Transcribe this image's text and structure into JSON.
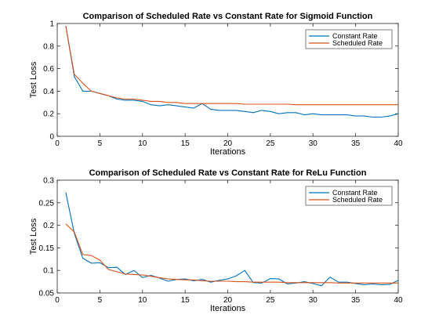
{
  "chart_data": [
    {
      "type": "line",
      "title": "Comparison of Scheduled Rate vs Constant Rate for Sigmoid Function",
      "xlabel": "Iterations",
      "ylabel": "Test Loss",
      "xlim": [
        0,
        40
      ],
      "ylim": [
        0,
        1
      ],
      "xticks": [
        0,
        5,
        10,
        15,
        20,
        25,
        30,
        35,
        40
      ],
      "xtick_labels": [
        "0",
        "5",
        "10",
        "15",
        "20",
        "25",
        "30",
        "35",
        "40"
      ],
      "yticks": [
        0,
        0.2,
        0.4,
        0.6,
        0.8,
        1
      ],
      "ytick_labels": [
        "0",
        "0.2",
        "0.4",
        "0.6",
        "0.8",
        "1"
      ],
      "grid": false,
      "legend_position": "top-right",
      "x": [
        1,
        2,
        3,
        4,
        5,
        6,
        7,
        8,
        9,
        10,
        11,
        12,
        13,
        14,
        15,
        16,
        17,
        18,
        19,
        20,
        21,
        22,
        23,
        24,
        25,
        26,
        27,
        28,
        29,
        30,
        31,
        32,
        33,
        34,
        35,
        36,
        37,
        38,
        39,
        40
      ],
      "series": [
        {
          "name": "Constant Rate",
          "color": "#0072bd",
          "values": [
            0.98,
            0.53,
            0.4,
            0.4,
            0.38,
            0.36,
            0.33,
            0.32,
            0.32,
            0.31,
            0.28,
            0.27,
            0.28,
            0.27,
            0.26,
            0.25,
            0.29,
            0.24,
            0.23,
            0.23,
            0.23,
            0.22,
            0.21,
            0.23,
            0.22,
            0.2,
            0.21,
            0.21,
            0.19,
            0.2,
            0.19,
            0.19,
            0.19,
            0.19,
            0.18,
            0.18,
            0.17,
            0.17,
            0.18,
            0.2
          ]
        },
        {
          "name": "Scheduled Rate",
          "color": "#d95319",
          "values": [
            0.98,
            0.55,
            0.47,
            0.4,
            0.38,
            0.36,
            0.34,
            0.33,
            0.33,
            0.32,
            0.31,
            0.31,
            0.3,
            0.3,
            0.29,
            0.29,
            0.29,
            0.29,
            0.29,
            0.29,
            0.29,
            0.285,
            0.285,
            0.285,
            0.285,
            0.285,
            0.285,
            0.28,
            0.28,
            0.28,
            0.28,
            0.28,
            0.28,
            0.28,
            0.28,
            0.28,
            0.28,
            0.28,
            0.28,
            0.28
          ]
        }
      ]
    },
    {
      "type": "line",
      "title": "Comparison of Scheduled Rate vs Constant Rate for ReLu Function",
      "xlabel": "Iterations",
      "ylabel": "Test Loss",
      "xlim": [
        0,
        40
      ],
      "ylim": [
        0.05,
        0.3
      ],
      "xticks": [
        0,
        5,
        10,
        15,
        20,
        25,
        30,
        35,
        40
      ],
      "xtick_labels": [
        "0",
        "5",
        "10",
        "15",
        "20",
        "25",
        "30",
        "35",
        "40"
      ],
      "yticks": [
        0.05,
        0.1,
        0.15,
        0.2,
        0.25,
        0.3
      ],
      "ytick_labels": [
        "0.05",
        "0.1",
        "0.15",
        "0.2",
        "0.25",
        "0.3"
      ],
      "grid": false,
      "legend_position": "top-right",
      "x": [
        1,
        2,
        3,
        4,
        5,
        6,
        7,
        8,
        9,
        10,
        11,
        12,
        13,
        14,
        15,
        16,
        17,
        18,
        19,
        20,
        21,
        22,
        23,
        24,
        25,
        26,
        27,
        28,
        29,
        30,
        31,
        32,
        33,
        34,
        35,
        36,
        37,
        38,
        39,
        40
      ],
      "series": [
        {
          "name": "Constant Rate",
          "color": "#0072bd",
          "values": [
            0.273,
            0.182,
            0.127,
            0.116,
            0.117,
            0.106,
            0.107,
            0.091,
            0.1,
            0.084,
            0.089,
            0.083,
            0.076,
            0.08,
            0.081,
            0.077,
            0.08,
            0.074,
            0.078,
            0.081,
            0.088,
            0.1,
            0.073,
            0.072,
            0.082,
            0.081,
            0.07,
            0.072,
            0.075,
            0.071,
            0.066,
            0.085,
            0.074,
            0.074,
            0.071,
            0.068,
            0.07,
            0.068,
            0.069,
            0.078
          ]
        },
        {
          "name": "Scheduled Rate",
          "color": "#d95319",
          "values": [
            0.203,
            0.185,
            0.135,
            0.133,
            0.123,
            0.102,
            0.097,
            0.092,
            0.091,
            0.09,
            0.087,
            0.084,
            0.081,
            0.08,
            0.079,
            0.079,
            0.077,
            0.076,
            0.076,
            0.076,
            0.075,
            0.075,
            0.074,
            0.074,
            0.074,
            0.074,
            0.073,
            0.073,
            0.073,
            0.073,
            0.073,
            0.073,
            0.072,
            0.072,
            0.072,
            0.072,
            0.072,
            0.072,
            0.072,
            0.072
          ]
        }
      ]
    }
  ]
}
